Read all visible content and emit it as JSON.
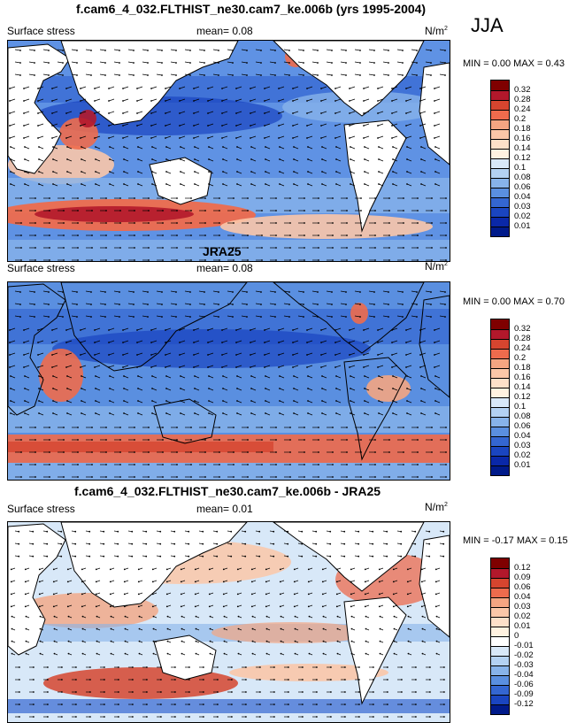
{
  "season": "JJA",
  "panels": [
    {
      "title": "f.cam6_4_032.FLTHIST_ne30.cam7_ke.006b (yrs 1995-2004)",
      "left_label": "Surface stress",
      "mean_text": "mean=  0.08",
      "units": "N/m",
      "units_sup": "2",
      "min_max_text": "MIN =  0.00 MAX =  0.43",
      "colorbar": {
        "ticks": [
          "0.32",
          "0.28",
          "0.24",
          "0.2",
          "0.18",
          "0.16",
          "0.14",
          "0.12",
          "0.1",
          "0.08",
          "0.06",
          "0.04",
          "0.03",
          "0.02",
          "0.01"
        ],
        "colors": [
          "#7f0000",
          "#b2182b",
          "#d6452f",
          "#ee6b4d",
          "#f4a582",
          "#fbc7a8",
          "#fde0c9",
          "#fff2e0",
          "#d8e8f8",
          "#b3d1f2",
          "#87b3ea",
          "#5a8fe0",
          "#3466d1",
          "#1a45c0",
          "#0a28a8",
          "#001a8a"
        ]
      }
    },
    {
      "title": "JRA25",
      "left_label": "Surface stress",
      "mean_text": "mean=  0.08",
      "units": "N/m",
      "units_sup": "2",
      "min_max_text": "MIN =  0.00 MAX =  0.70",
      "colorbar": {
        "ticks": [
          "0.32",
          "0.28",
          "0.24",
          "0.2",
          "0.18",
          "0.16",
          "0.14",
          "0.12",
          "0.1",
          "0.08",
          "0.06",
          "0.04",
          "0.03",
          "0.02",
          "0.01"
        ],
        "colors": [
          "#7f0000",
          "#b2182b",
          "#d6452f",
          "#ee6b4d",
          "#f4a582",
          "#fbc7a8",
          "#fde0c9",
          "#fff2e0",
          "#d8e8f8",
          "#b3d1f2",
          "#87b3ea",
          "#5a8fe0",
          "#3466d1",
          "#1a45c0",
          "#0a28a8",
          "#001a8a"
        ]
      }
    },
    {
      "title": "f.cam6_4_032.FLTHIST_ne30.cam7_ke.006b - JRA25",
      "left_label": "Surface stress",
      "mean_text": "mean=  0.01",
      "units": "N/m",
      "units_sup": "2",
      "min_max_text": "MIN = -0.17 MAX =  0.15",
      "colorbar": {
        "ticks": [
          "0.12",
          "0.09",
          "0.06",
          "0.04",
          "0.03",
          "0.02",
          "0.01",
          "0",
          "-0.01",
          "-0.02",
          "-0.03",
          "-0.04",
          "-0.06",
          "-0.09",
          "-0.12"
        ],
        "colors": [
          "#7f0000",
          "#b2182b",
          "#d6452f",
          "#ee6b4d",
          "#f4a582",
          "#fbc7a8",
          "#fde0c9",
          "#fff2e0",
          "#ffffff",
          "#d8e8f8",
          "#b3d1f2",
          "#87b3ea",
          "#5a8fe0",
          "#3466d1",
          "#1a45c0",
          "#001a8a"
        ]
      }
    }
  ]
}
